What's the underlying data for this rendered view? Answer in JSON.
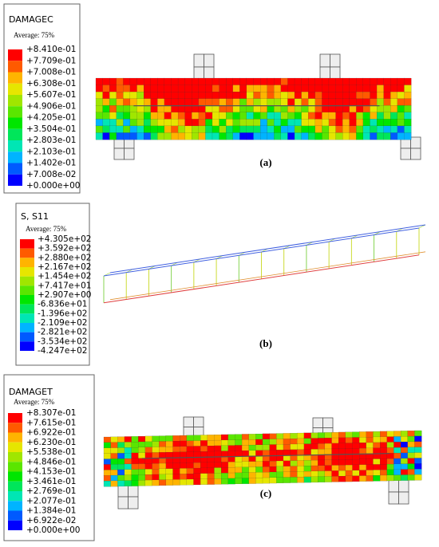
{
  "panels": [
    {
      "legend": {
        "title": "DAMAGEC",
        "average": "Average: 75%",
        "levels": [
          "+8.410e-01",
          "+7.709e-01",
          "+7.008e-01",
          "+6.308e-01",
          "+5.607e-01",
          "+4.906e-01",
          "+4.205e-01",
          "+3.504e-01",
          "+2.803e-01",
          "+2.103e-01",
          "+1.402e-01",
          "+7.008e-02",
          "+0.000e+00"
        ]
      },
      "caption": "(a)"
    },
    {
      "legend": {
        "title": "S, S11",
        "average": "Average: 75%",
        "levels": [
          "+4.305e+02",
          "+3.592e+02",
          "+2.880e+02",
          "+2.167e+02",
          "+1.454e+02",
          "+7.417e+01",
          "+2.907e+00",
          "-6.836e+01",
          "-1.396e+02",
          "-2.109e+02",
          "-2.821e+02",
          "-3.534e+02",
          "-4.247e+02"
        ]
      },
      "caption": "(b)"
    },
    {
      "legend": {
        "title": "DAMAGET",
        "average": "Average: 75%",
        "levels": [
          "+8.307e-01",
          "+7.615e-01",
          "+6.922e-01",
          "+6.230e-01",
          "+5.538e-01",
          "+4.846e-01",
          "+4.153e-01",
          "+3.461e-01",
          "+2.769e-01",
          "+2.077e-01",
          "+1.384e-01",
          "+6.922e-02",
          "+0.000e+00"
        ]
      },
      "caption": "(c)"
    }
  ]
}
